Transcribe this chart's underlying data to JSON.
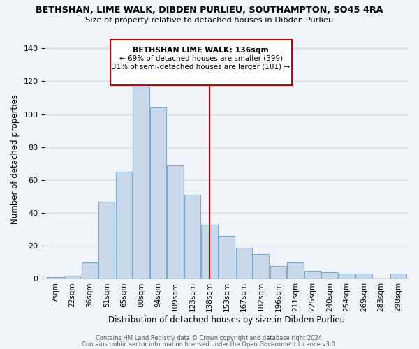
{
  "title": "BETHSHAN, LIME WALK, DIBDEN PURLIEU, SOUTHAMPTON, SO45 4RA",
  "subtitle": "Size of property relative to detached houses in Dibden Purlieu",
  "xlabel": "Distribution of detached houses by size in Dibden Purlieu",
  "ylabel": "Number of detached properties",
  "bin_labels": [
    "7sqm",
    "22sqm",
    "36sqm",
    "51sqm",
    "65sqm",
    "80sqm",
    "94sqm",
    "109sqm",
    "123sqm",
    "138sqm",
    "153sqm",
    "167sqm",
    "182sqm",
    "196sqm",
    "211sqm",
    "225sqm",
    "240sqm",
    "254sqm",
    "269sqm",
    "283sqm",
    "298sqm"
  ],
  "bar_heights": [
    1,
    2,
    10,
    47,
    65,
    117,
    104,
    69,
    51,
    33,
    26,
    19,
    15,
    8,
    10,
    5,
    4,
    3,
    3,
    0,
    3
  ],
  "bar_color": "#c8d8ea",
  "bar_edge_color": "#7aaac8",
  "marker_x_label": "138sqm",
  "marker_line_color": "#cc0000",
  "ylim": [
    0,
    145
  ],
  "yticks": [
    0,
    20,
    40,
    60,
    80,
    100,
    120,
    140
  ],
  "annotation_title": "BETHSHAN LIME WALK: 136sqm",
  "annotation_line1": "← 69% of detached houses are smaller (399)",
  "annotation_line2": "31% of semi-detached houses are larger (181) →",
  "annotation_box_color": "#ffffff",
  "annotation_box_edge": "#cc0000",
  "footer_line1": "Contains HM Land Registry data © Crown copyright and database right 2024.",
  "footer_line2": "Contains public sector information licensed under the Open Government Licence v3.0.",
  "background_color": "#f0f4f8",
  "grid_color": "#d0d8e0"
}
